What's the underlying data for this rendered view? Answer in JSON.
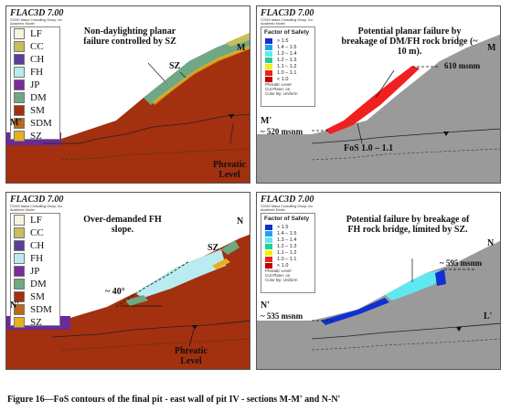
{
  "software": "FLAC3D 7.00",
  "software_sub": "©2020 Itasca Consulting Group, Inc.",
  "software_sub2": "Academic Model",
  "lithology_legend": [
    {
      "code": "LF",
      "color": "#f8f3dc"
    },
    {
      "code": "CC",
      "color": "#c8bf5a"
    },
    {
      "code": "CH",
      "color": "#5a3d9a"
    },
    {
      "code": "FH",
      "color": "#b8ecf0"
    },
    {
      "code": "JP",
      "color": "#7a2a9a"
    },
    {
      "code": "DM",
      "color": "#6ea884"
    },
    {
      "code": "SM",
      "color": "#a3300e"
    },
    {
      "code": "SDM",
      "color": "#b86a1a"
    },
    {
      "code": "SZ",
      "color": "#e8b020"
    }
  ],
  "fos_legend": {
    "title": "Factor of Safety",
    "items": [
      {
        "label": "> 1.5",
        "color": "#1030d0"
      },
      {
        "label": "1.4 – 1.5",
        "color": "#20a0f0"
      },
      {
        "label": "1.3 – 1.4",
        "color": "#60e8f0"
      },
      {
        "label": "1.2 – 1.3",
        "color": "#20d090"
      },
      {
        "label": "1.1 – 1.2",
        "color": "#f0f020"
      },
      {
        "label": "1.0 – 1.1",
        "color": "#f02020"
      },
      {
        "label": "< 1.0",
        "color": "#c00000"
      }
    ],
    "note1": "Phreatic Level",
    "note2": "Cut Plane: on",
    "note3": "Color By: Uniform"
  },
  "panel1": {
    "annotation": "Non-daylighting planar failure controlled by SZ",
    "sz_label": "SZ",
    "m_label": "M",
    "m_prime": "M'",
    "phreatic": "Phreatic Level"
  },
  "panel2": {
    "annotation": "Potential planar failure by breakage of DM/FH rock bridge (~ 10 m).",
    "elev_top": "610 msnm",
    "elev_bottom": "~ 520 msnm",
    "m_label": "M",
    "m_prime": "M'",
    "fos_note": "FoS 1.0 – 1.1"
  },
  "panel3": {
    "annotation": "Over-demanded FH slope.",
    "angle": "~ 40°",
    "sz_label": "SZ",
    "n_label": "N",
    "n_prime": "N'",
    "phreatic": "Phreatic Level"
  },
  "panel4": {
    "annotation": "Potential failure by breakage of FH rock bridge, limited by SZ.",
    "elev_top": "~ 595 msnm",
    "elev_bottom": "~ 535 msnm",
    "n_label": "N",
    "n_prime": "N'",
    "l_prime": "L'"
  },
  "caption": "Figure 16—FoS contours of the final pit - east wall of pit IV - sections M-M' and N-N'"
}
